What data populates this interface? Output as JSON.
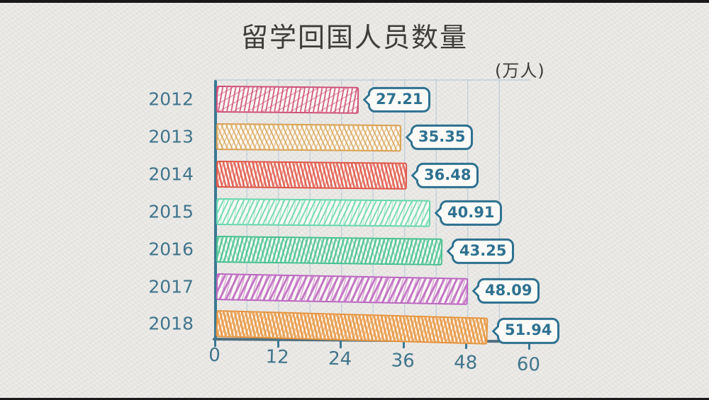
{
  "title": "留学回国人员数量",
  "unit_label": "(万人)",
  "chart_data": {
    "type": "bar",
    "orientation": "horizontal",
    "style": "hand-drawn",
    "title": "留学回国人员数量",
    "unit": "万人",
    "categories": [
      "2012",
      "2013",
      "2014",
      "2015",
      "2016",
      "2017",
      "2018"
    ],
    "values": [
      27.21,
      35.35,
      36.48,
      40.91,
      43.25,
      48.09,
      51.94
    ],
    "value_labels": [
      "27.21",
      "35.35",
      "36.48",
      "40.91",
      "43.25",
      "48.09",
      "51.94"
    ],
    "bar_colors": [
      "#d0507a",
      "#d8a355",
      "#df5346",
      "#66d7b0",
      "#46c08f",
      "#bb66bf",
      "#e6943e"
    ],
    "x_tick_labels": [
      "0",
      "12",
      "24",
      "36",
      "48",
      "60"
    ],
    "xlim": [
      0,
      60
    ],
    "grid": "faint vertical minor gridlines every 6 units",
    "legend": "none"
  },
  "colors": {
    "paper_background": "#e9e8e5",
    "letterbox_strip": "#191919",
    "title_text": "#3e3d3a",
    "axis_and_label_teal": "#3a7893",
    "year_tick_text": "#41758c",
    "bubble_border_text": "#2e7190"
  }
}
